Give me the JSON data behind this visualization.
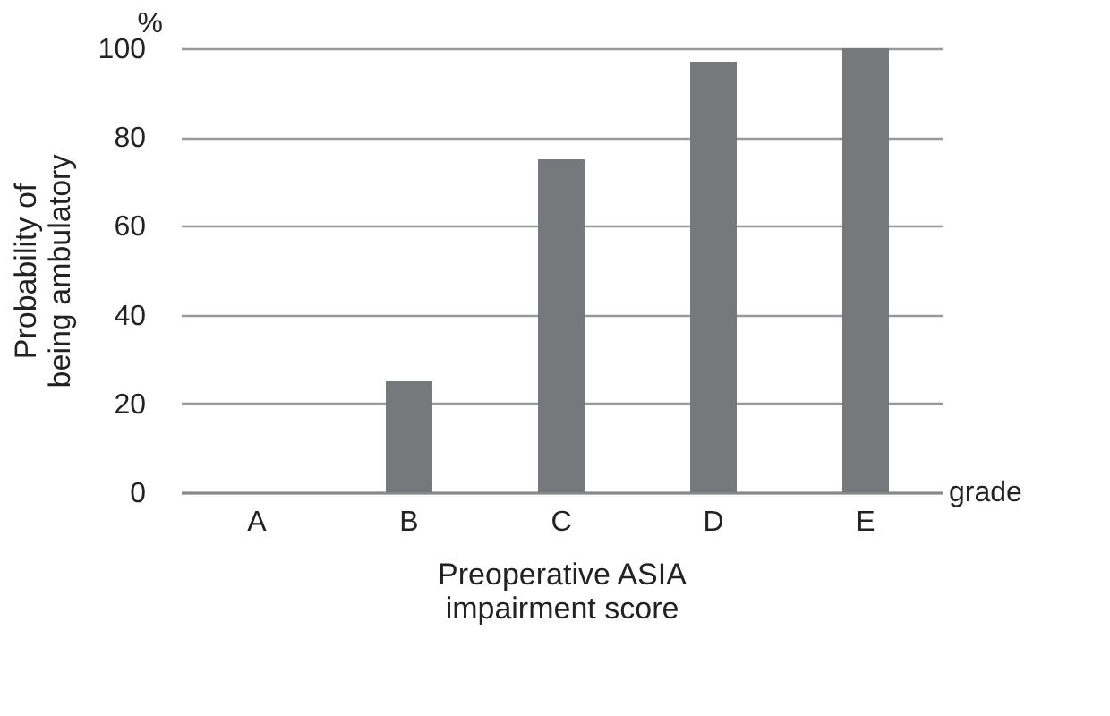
{
  "chart_data": {
    "type": "bar",
    "categories": [
      "A",
      "B",
      "C",
      "D",
      "E"
    ],
    "values": [
      0,
      25,
      75,
      97,
      100
    ],
    "color": "#77787b",
    "ylim": [
      0,
      100
    ],
    "yticks": [
      0,
      20,
      40,
      60,
      80,
      100
    ],
    "grid": "y",
    "ylabel": "Probability of\nbeing ambulatory",
    "xlabel": "Preoperative ASIA\nimpairment score",
    "annotations": [
      "%",
      "grade"
    ]
  }
}
